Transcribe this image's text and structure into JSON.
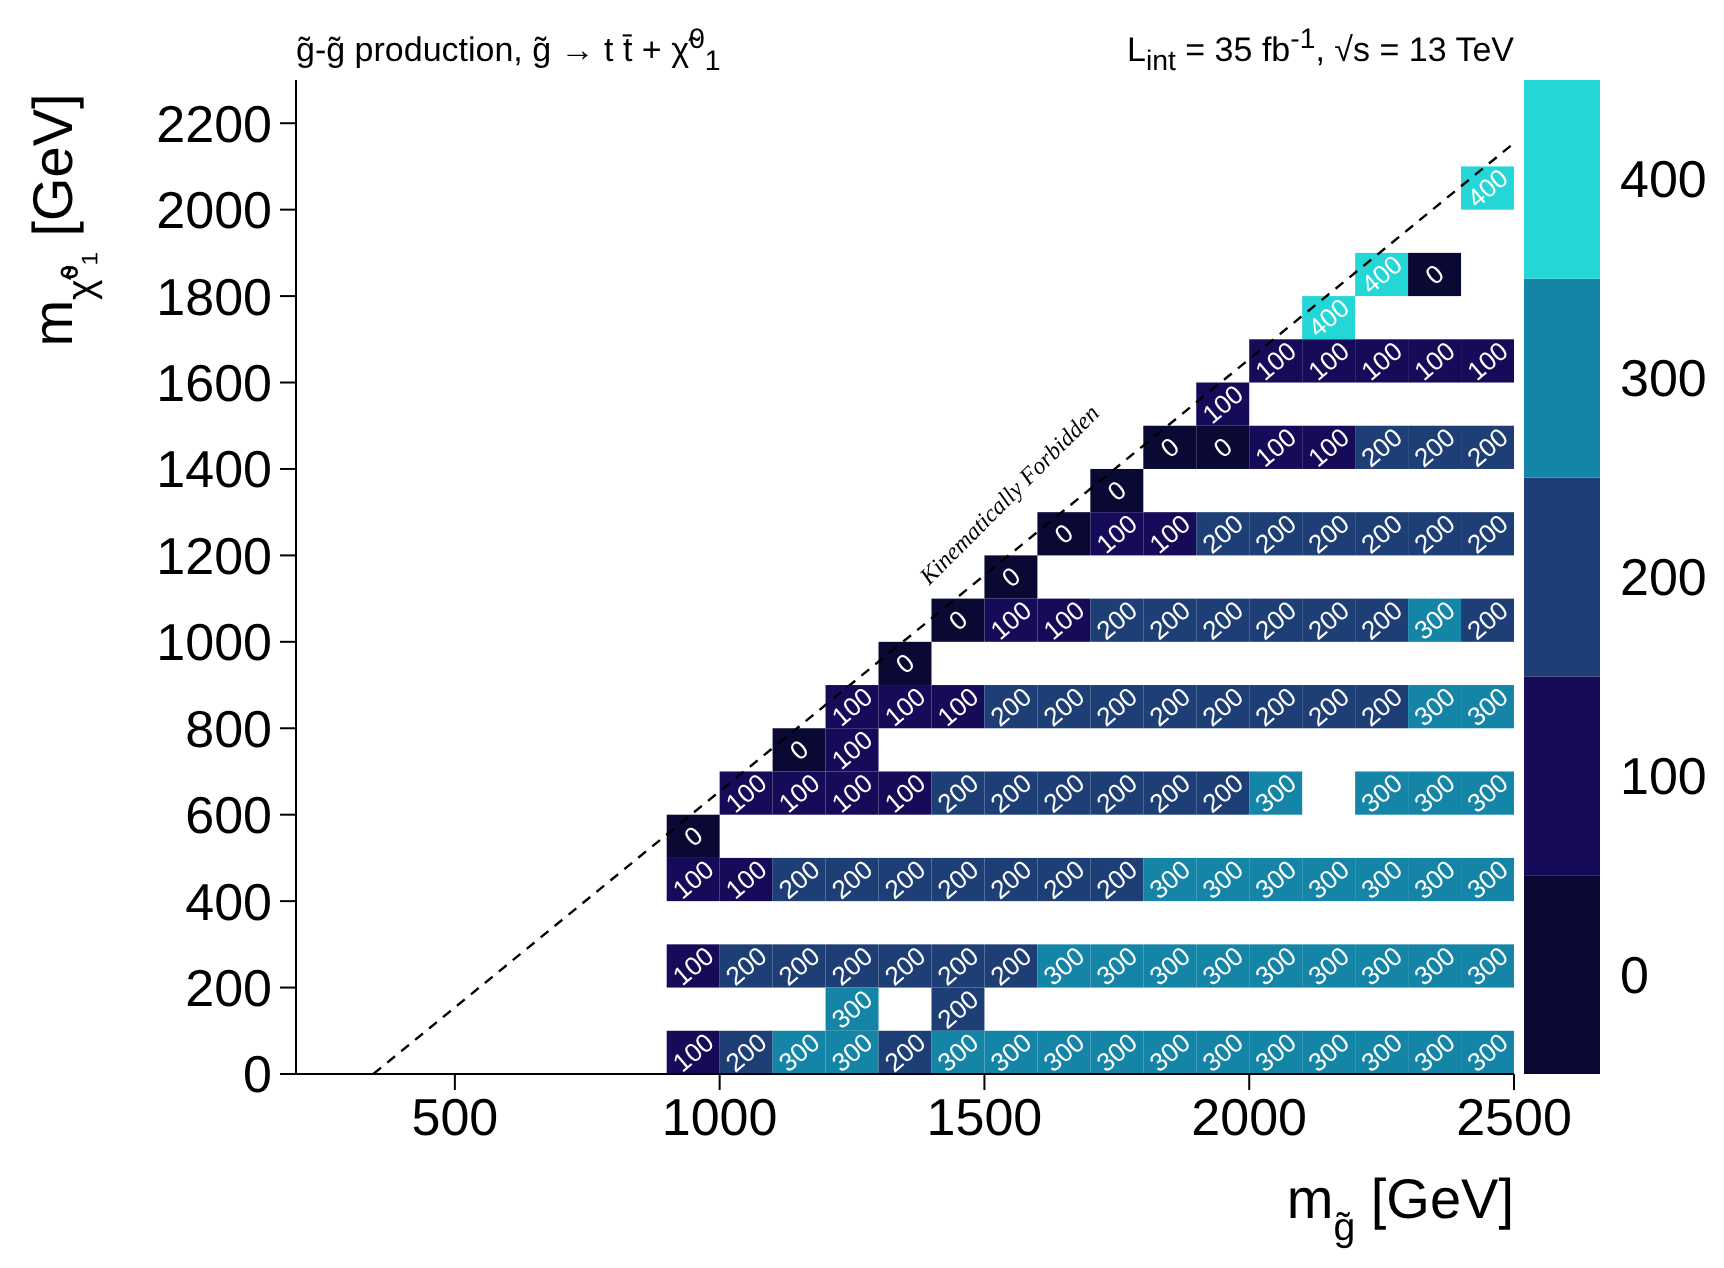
{
  "chart_data": {
    "type": "heatmap",
    "title": "g̃-g̃ production, g̃ → t t̄ + χ̃$^{0}$$_{1}$",
    "subtitle": "L$_{int}$ = 35 fb$^{-1}$, √s = 13 TeV",
    "xlabel": "m$_{g̃}$ [GeV]",
    "ylabel": "m$_{χ̃⁰₁}$ [GeV]",
    "x": [
      950,
      1050,
      1150,
      1250,
      1350,
      1450,
      1550,
      1650,
      1750,
      1850,
      1950,
      2050,
      2150,
      2250,
      2350,
      2450
    ],
    "y": [
      2050,
      1850,
      1750,
      1650,
      1550,
      1450,
      1350,
      1250,
      1150,
      1050,
      950,
      850,
      750,
      650,
      550,
      450,
      250,
      150,
      50
    ],
    "cells": [
      [
        null,
        null,
        null,
        null,
        null,
        null,
        null,
        null,
        null,
        null,
        null,
        null,
        null,
        null,
        null,
        400
      ],
      [
        null,
        null,
        null,
        null,
        null,
        null,
        null,
        null,
        null,
        null,
        null,
        null,
        null,
        400,
        0,
        null
      ],
      [
        null,
        null,
        null,
        null,
        null,
        null,
        null,
        null,
        null,
        null,
        null,
        null,
        400,
        null,
        null,
        null
      ],
      [
        null,
        null,
        null,
        null,
        null,
        null,
        null,
        null,
        null,
        null,
        null,
        100,
        100,
        100,
        100,
        100
      ],
      [
        null,
        null,
        null,
        null,
        null,
        null,
        null,
        null,
        null,
        null,
        100,
        null,
        null,
        null,
        null,
        null
      ],
      [
        null,
        null,
        null,
        null,
        null,
        null,
        null,
        null,
        null,
        0,
        0,
        100,
        100,
        200,
        200,
        200
      ],
      [
        null,
        null,
        null,
        null,
        null,
        null,
        null,
        null,
        0,
        null,
        null,
        null,
        null,
        null,
        null,
        null
      ],
      [
        null,
        null,
        null,
        null,
        null,
        null,
        null,
        0,
        100,
        100,
        200,
        200,
        200,
        200,
        200,
        200
      ],
      [
        null,
        null,
        null,
        null,
        null,
        null,
        0,
        null,
        null,
        null,
        null,
        null,
        null,
        null,
        null,
        null
      ],
      [
        null,
        null,
        null,
        null,
        null,
        0,
        100,
        100,
        200,
        200,
        200,
        200,
        200,
        200,
        300,
        200
      ],
      [
        null,
        null,
        null,
        null,
        0,
        null,
        null,
        null,
        null,
        null,
        null,
        null,
        null,
        null,
        null,
        null
      ],
      [
        null,
        null,
        null,
        100,
        100,
        100,
        200,
        200,
        200,
        200,
        200,
        200,
        200,
        200,
        300,
        300
      ],
      [
        null,
        null,
        0,
        100,
        null,
        null,
        null,
        null,
        null,
        null,
        null,
        null,
        null,
        null,
        null,
        null
      ],
      [
        null,
        100,
        100,
        100,
        100,
        200,
        200,
        200,
        200,
        200,
        200,
        300,
        null,
        300,
        300,
        300
      ],
      [
        0,
        null,
        null,
        null,
        null,
        null,
        null,
        null,
        null,
        null,
        null,
        null,
        null,
        null,
        null,
        null
      ],
      [
        100,
        100,
        200,
        200,
        200,
        200,
        200,
        200,
        200,
        300,
        300,
        300,
        300,
        300,
        300,
        300
      ],
      [
        100,
        200,
        200,
        200,
        200,
        200,
        200,
        300,
        300,
        300,
        300,
        300,
        300,
        300,
        300,
        300
      ],
      [
        null,
        null,
        null,
        300,
        null,
        200,
        null,
        null,
        null,
        null,
        null,
        null,
        null,
        null,
        null,
        null
      ],
      [
        100,
        200,
        300,
        300,
        200,
        300,
        300,
        300,
        300,
        300,
        300,
        300,
        300,
        300,
        300,
        300
      ]
    ],
    "colors": [
      "#0a0934",
      "#160b58",
      "#1e3f76",
      "#1585a7",
      "#25d6d6"
    ],
    "clim": [
      -50,
      450
    ],
    "cticks": [
      0,
      100,
      200,
      300,
      400
    ],
    "data_labels": true,
    "series": [
      {
        "type": "line",
        "x": [
          346,
          2500
        ],
        "values": [
          0,
          2154
        ],
        "color": "#000000",
        "line_style": "dashed",
        "value_labels": [
          null,
          null
        ]
      }
    ],
    "annotations": [
      "Kinematically Forbidden"
    ],
    "xlim": [
      200,
      2500
    ],
    "ylim": [
      0,
      2300
    ],
    "xticks": [
      500,
      1000,
      1500,
      2000,
      2500
    ],
    "yticks": [
      0,
      200,
      400,
      600,
      800,
      1000,
      1200,
      1400,
      1600,
      1800,
      2000,
      2200
    ]
  }
}
